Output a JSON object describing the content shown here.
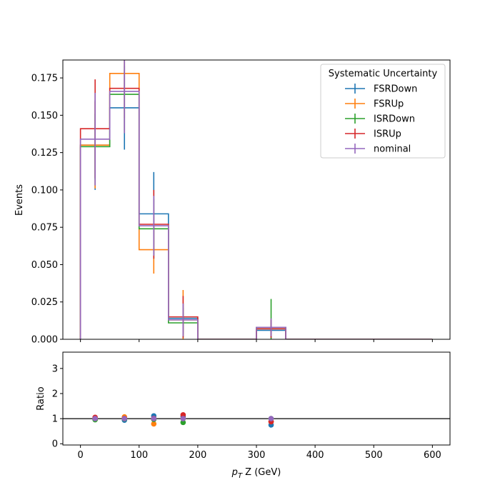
{
  "chart_data": [
    {
      "type": "step",
      "panel": "main",
      "ylabel": "Events",
      "xlim": [
        -30,
        630
      ],
      "ylim": [
        0,
        0.187
      ],
      "bin_edges": [
        0,
        50,
        100,
        150,
        200,
        250,
        300,
        350,
        400,
        450,
        500,
        550,
        600
      ],
      "bin_centers": [
        25,
        75,
        125,
        175,
        325
      ],
      "legend": {
        "title": "Systematic Uncertainty",
        "loc": "upper right"
      },
      "yticks": [
        "0.000",
        "0.025",
        "0.050",
        "0.075",
        "0.100",
        "0.125",
        "0.150",
        "0.175"
      ],
      "series": [
        {
          "name": "FSRDown",
          "color": "#1f77b4",
          "values": [
            0.13,
            0.155,
            0.084,
            0.014,
            0,
            0,
            0.006,
            0,
            0,
            0,
            0,
            0
          ],
          "errors": [
            0.03,
            0.028,
            0.028,
            0.01,
            0,
            0,
            0.005,
            0,
            0,
            0,
            0,
            0
          ]
        },
        {
          "name": "FSRUp",
          "color": "#ff7f0e",
          "values": [
            0.13,
            0.178,
            0.06,
            0.013,
            0,
            0,
            0.007,
            0,
            0,
            0,
            0,
            0
          ],
          "errors": [
            0.029,
            0.03,
            0.016,
            0.02,
            0,
            0,
            0.006,
            0,
            0,
            0,
            0,
            0
          ]
        },
        {
          "name": "ISRDown",
          "color": "#2ca02c",
          "values": [
            0.129,
            0.164,
            0.074,
            0.011,
            0,
            0,
            0.008,
            0,
            0,
            0,
            0,
            0
          ],
          "errors": [
            0.022,
            0.026,
            0.02,
            0.01,
            0,
            0,
            0.019,
            0,
            0,
            0,
            0,
            0
          ]
        },
        {
          "name": "ISRUp",
          "color": "#d62728",
          "values": [
            0.141,
            0.168,
            0.077,
            0.015,
            0,
            0,
            0.007,
            0,
            0,
            0,
            0,
            0
          ],
          "errors": [
            0.033,
            0.028,
            0.023,
            0.014,
            0,
            0,
            0.006,
            0,
            0,
            0,
            0,
            0
          ]
        },
        {
          "name": "nominal",
          "color": "#9467bd",
          "values": [
            0.134,
            0.166,
            0.076,
            0.013,
            0,
            0,
            0.008,
            0,
            0,
            0,
            0,
            0
          ],
          "errors": [
            0.031,
            0.028,
            0.02,
            0.011,
            0,
            0,
            0.006,
            0,
            0,
            0,
            0,
            0
          ]
        }
      ]
    },
    {
      "type": "scatter",
      "panel": "ratio",
      "xlabel_pre": "p",
      "xlabel_sub": "T",
      "xlabel_post": " Z (GeV)",
      "ylabel": "Ratio",
      "xlim": [
        -30,
        630
      ],
      "ylim": [
        -0.05,
        3.65
      ],
      "reference_line": 1,
      "x": [
        25,
        75,
        125,
        175,
        325
      ],
      "xticks": [
        "0",
        "100",
        "200",
        "300",
        "400",
        "500",
        "600"
      ],
      "yticks": [
        "0",
        "1",
        "2",
        "3"
      ],
      "series": [
        {
          "name": "FSRDown",
          "color": "#1f77b4",
          "values": [
            0.97,
            0.94,
            1.11,
            1.08,
            0.75
          ]
        },
        {
          "name": "FSRUp",
          "color": "#ff7f0e",
          "values": [
            0.97,
            1.07,
            0.79,
            1.0,
            0.88
          ]
        },
        {
          "name": "ISRDown",
          "color": "#2ca02c",
          "values": [
            0.96,
            0.99,
            0.97,
            0.85,
            1.0
          ]
        },
        {
          "name": "ISRUp",
          "color": "#d62728",
          "values": [
            1.05,
            1.01,
            1.01,
            1.15,
            0.88
          ]
        },
        {
          "name": "nominal",
          "color": "#9467bd",
          "values": [
            1.0,
            1.0,
            1.0,
            1.0,
            1.0
          ]
        }
      ]
    }
  ]
}
